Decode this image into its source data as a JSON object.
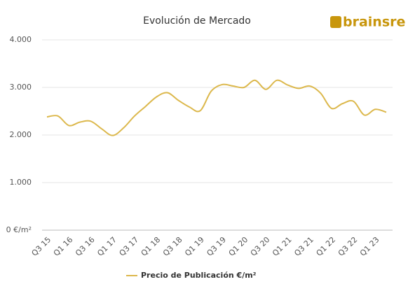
{
  "chart_data": {
    "type": "line",
    "title": "Evolución de Mercado",
    "logo": "brainsre",
    "categories": [
      "Q3 15",
      null,
      "Q1 16",
      null,
      "Q3 16",
      null,
      "Q1 17",
      null,
      "Q3 17",
      null,
      "Q1 18",
      null,
      "Q3 18",
      null,
      "Q1 19",
      null,
      "Q3 19",
      null,
      "Q1 20",
      null,
      "Q3 20",
      null,
      "Q1 21",
      null,
      "Q3 21",
      null,
      "Q1 22",
      null,
      "Q3 22",
      null,
      "Q1 23",
      null
    ],
    "series": [
      {
        "name": "Precio de Publicación €/m²",
        "color": "#dcb84c",
        "values": [
          2380,
          2400,
          2200,
          2270,
          2290,
          2130,
          1990,
          2150,
          2400,
          2600,
          2800,
          2890,
          2730,
          2590,
          2510,
          2920,
          3060,
          3030,
          3000,
          3150,
          2960,
          3150,
          3050,
          2980,
          3030,
          2880,
          2560,
          2660,
          2710,
          2420,
          2540,
          2480
        ]
      }
    ],
    "ylim": [
      0,
      4000
    ],
    "yticks": [
      {
        "value": 0,
        "label": "0 €/m²"
      },
      {
        "value": 1000,
        "label": "1.000"
      },
      {
        "value": 2000,
        "label": "2.000"
      },
      {
        "value": 3000,
        "label": "3.000"
      },
      {
        "value": 4000,
        "label": "4.000"
      }
    ],
    "grid": true,
    "legend": "bottom"
  }
}
